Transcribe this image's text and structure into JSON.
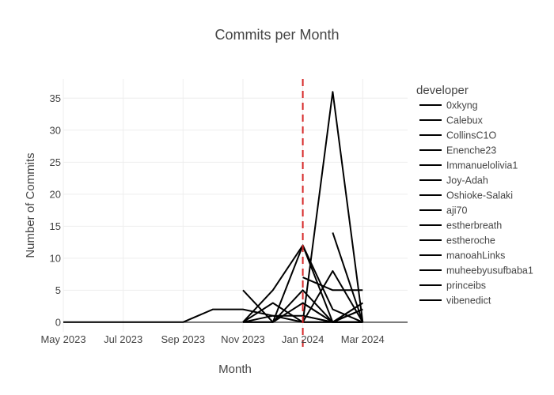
{
  "chart_data": {
    "type": "line",
    "title": "Commits per Month",
    "xlabel": "Month",
    "ylabel": "Number of Commits",
    "x_ticks": [
      {
        "label": "May 2023",
        "month": 0
      },
      {
        "label": "Jul 2023",
        "month": 2
      },
      {
        "label": "Sep 2023",
        "month": 4
      },
      {
        "label": "Nov 2023",
        "month": 6
      },
      {
        "label": "Jan 2024",
        "month": 8
      },
      {
        "label": "Mar 2024",
        "month": 10
      }
    ],
    "x_range": [
      0,
      11.5
    ],
    "y_ticks": [
      0,
      5,
      10,
      15,
      20,
      25,
      30,
      35
    ],
    "ylim": [
      -1.5,
      38
    ],
    "vline": {
      "month": 8,
      "color": "#d62728",
      "style": "dashed"
    },
    "legend_title": "developer",
    "legend_position": "right",
    "line_color": "#000000",
    "series": [
      {
        "name": "0xkyng",
        "points": [
          [
            0,
            0
          ],
          [
            1,
            0
          ],
          [
            2,
            0
          ],
          [
            3,
            0
          ],
          [
            4,
            0
          ],
          [
            5,
            2
          ],
          [
            6,
            2
          ],
          [
            7,
            1
          ],
          [
            8,
            0
          ],
          [
            9,
            0
          ],
          [
            10,
            0
          ]
        ]
      },
      {
        "name": "Calebux",
        "points": [
          [
            6,
            5
          ],
          [
            7,
            0
          ],
          [
            8,
            5
          ],
          [
            9,
            0
          ],
          [
            10,
            3
          ]
        ]
      },
      {
        "name": "CollinsC1O",
        "points": [
          [
            6,
            0
          ],
          [
            7,
            5
          ],
          [
            8,
            12
          ],
          [
            9,
            2
          ],
          [
            10,
            0
          ]
        ]
      },
      {
        "name": "Enenche23",
        "points": [
          [
            6,
            0
          ],
          [
            7,
            3
          ],
          [
            8,
            0
          ],
          [
            9,
            36
          ],
          [
            10,
            0
          ]
        ]
      },
      {
        "name": "Immanuelolivia1",
        "points": [
          [
            8,
            7
          ],
          [
            9,
            5
          ],
          [
            10,
            5
          ]
        ]
      },
      {
        "name": "Joy-Adah",
        "points": [
          [
            6,
            0
          ],
          [
            7,
            0
          ],
          [
            8,
            12
          ],
          [
            9,
            0
          ],
          [
            10,
            0
          ]
        ]
      },
      {
        "name": "Oshioke-Salaki",
        "points": [
          [
            8,
            3
          ],
          [
            9,
            0
          ],
          [
            10,
            0
          ]
        ]
      },
      {
        "name": "aji70",
        "points": [
          [
            9,
            14
          ],
          [
            10,
            0
          ]
        ]
      },
      {
        "name": "estherbreath",
        "points": [
          [
            8,
            1
          ],
          [
            9,
            0
          ],
          [
            10,
            2
          ]
        ]
      },
      {
        "name": "estheroche",
        "points": [
          [
            8,
            0
          ],
          [
            9,
            8
          ],
          [
            10,
            0
          ]
        ]
      },
      {
        "name": "manoahLinks",
        "points": [
          [
            6,
            0
          ],
          [
            7,
            0
          ],
          [
            8,
            3
          ],
          [
            9,
            0
          ],
          [
            10,
            0
          ]
        ]
      },
      {
        "name": "muheebyusufbaba1",
        "points": [
          [
            6,
            0
          ],
          [
            7,
            1
          ],
          [
            8,
            1
          ],
          [
            9,
            0
          ],
          [
            10,
            0
          ]
        ]
      },
      {
        "name": "princeibs",
        "points": [
          [
            9,
            0
          ],
          [
            10,
            2
          ]
        ]
      },
      {
        "name": "vibenedict",
        "points": [
          [
            8,
            0
          ],
          [
            9,
            0
          ],
          [
            10,
            3
          ]
        ]
      }
    ]
  }
}
